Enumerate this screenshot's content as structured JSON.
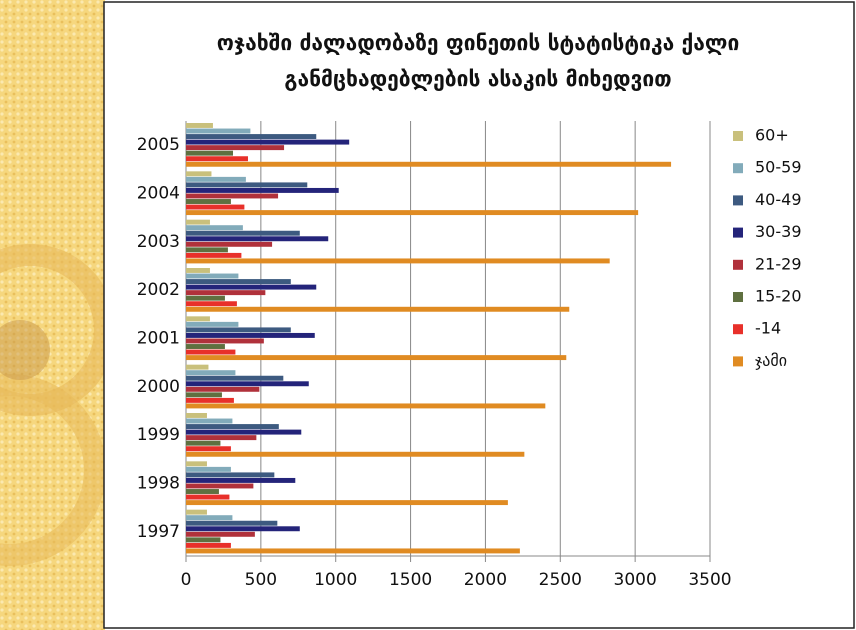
{
  "chart_data": {
    "type": "hbar",
    "title": [
      "ოჯახში ძალადობაზე ფინეთის სტატისტიკა ქალი",
      "განმცხადებლების ასაკის მიხედვით"
    ],
    "categories": [
      "2005",
      "2004",
      "2003",
      "2002",
      "2001",
      "2000",
      "1999",
      "1998",
      "1997"
    ],
    "series": [
      {
        "name": "60+",
        "color": "#c9c07c",
        "values": [
          180,
          170,
          160,
          160,
          160,
          150,
          140,
          140,
          140
        ]
      },
      {
        "name": "50-59",
        "color": "#82abba",
        "values": [
          430,
          400,
          380,
          350,
          350,
          330,
          310,
          300,
          310
        ]
      },
      {
        "name": "40-49",
        "color": "#3d5a80",
        "values": [
          870,
          810,
          760,
          700,
          700,
          650,
          620,
          590,
          610
        ]
      },
      {
        "name": "30-39",
        "color": "#24247a",
        "values": [
          1090,
          1020,
          950,
          870,
          860,
          820,
          770,
          730,
          760
        ]
      },
      {
        "name": "21-29",
        "color": "#b0313b",
        "values": [
          655,
          615,
          575,
          530,
          520,
          490,
          470,
          450,
          460
        ]
      },
      {
        "name": "15-20",
        "color": "#5f7040",
        "values": [
          314,
          300,
          280,
          260,
          260,
          240,
          230,
          220,
          230
        ]
      },
      {
        "name": "-14",
        "color": "#e8302a",
        "values": [
          414,
          390,
          370,
          340,
          330,
          320,
          300,
          290,
          300
        ]
      },
      {
        "name": "ჯამი",
        "color": "#e08b22",
        "values": [
          3240,
          3020,
          2830,
          2560,
          2540,
          2400,
          2260,
          2150,
          2230
        ]
      }
    ],
    "xlim": [
      0,
      3500
    ],
    "xticks": [
      0,
      500,
      1000,
      1500,
      2000,
      2500,
      3000,
      3500
    ],
    "grid": true,
    "legend": "right"
  }
}
